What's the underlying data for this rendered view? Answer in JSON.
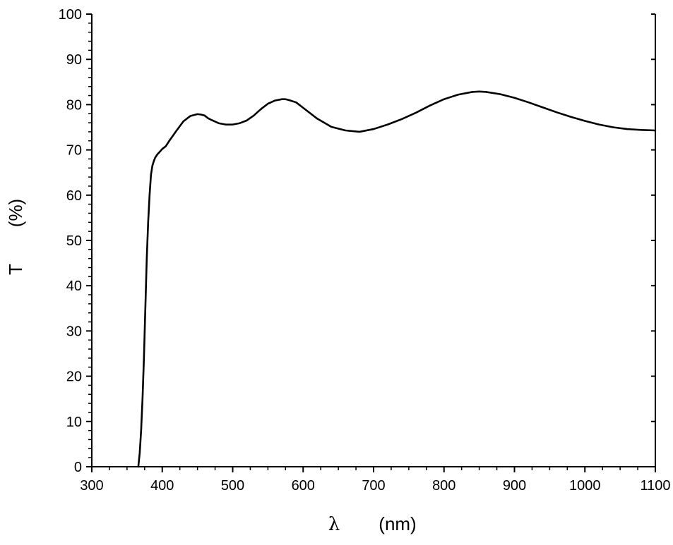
{
  "chart_data": {
    "type": "line",
    "title": "",
    "xlabel_symbol": "λ",
    "xlabel_unit": "(nm)",
    "ylabel_symbol": "T",
    "ylabel_unit": "(%)",
    "xlim": [
      300,
      1100
    ],
    "ylim": [
      0,
      100
    ],
    "x_ticks": [
      300,
      400,
      500,
      600,
      700,
      800,
      900,
      1000,
      1100
    ],
    "y_ticks": [
      0,
      10,
      20,
      30,
      40,
      50,
      60,
      70,
      80,
      90,
      100
    ],
    "x_tick_labels": [
      "300",
      "400",
      "500",
      "600",
      "700",
      "800",
      "900",
      "1000",
      "1100"
    ],
    "y_tick_labels": [
      "0",
      "10",
      "20",
      "30",
      "40",
      "50",
      "60",
      "70",
      "80",
      "90",
      "100"
    ],
    "grid": false,
    "legend": "none",
    "series": [
      {
        "x": [
          366,
          368,
          370,
          372,
          374,
          376,
          378,
          380,
          382,
          384,
          386,
          388,
          390,
          393,
          396,
          400,
          405,
          410,
          420,
          430,
          440,
          450,
          455,
          460,
          465,
          470,
          480,
          490,
          500,
          510,
          520,
          530,
          540,
          550,
          560,
          570,
          575,
          580,
          590,
          600,
          620,
          640,
          660,
          680,
          700,
          720,
          740,
          760,
          780,
          800,
          820,
          840,
          850,
          860,
          880,
          900,
          920,
          940,
          960,
          980,
          1000,
          1020,
          1040,
          1060,
          1080,
          1100
        ],
        "y": [
          0,
          3,
          8,
          15,
          24,
          35,
          46,
          54,
          60,
          64.5,
          66.5,
          67.5,
          68.3,
          69.0,
          69.5,
          70.2,
          70.8,
          72.0,
          74.2,
          76.3,
          77.5,
          77.9,
          77.8,
          77.6,
          77.0,
          76.6,
          75.9,
          75.6,
          75.6,
          75.9,
          76.5,
          77.6,
          79.0,
          80.2,
          80.9,
          81.2,
          81.2,
          81.0,
          80.5,
          79.3,
          76.9,
          75.1,
          74.3,
          74.0,
          74.6,
          75.6,
          76.8,
          78.2,
          79.8,
          81.2,
          82.2,
          82.8,
          82.9,
          82.8,
          82.3,
          81.5,
          80.5,
          79.4,
          78.3,
          77.3,
          76.4,
          75.6,
          75.0,
          74.6,
          74.4,
          74.3
        ]
      }
    ],
    "line_color": "#000000"
  }
}
